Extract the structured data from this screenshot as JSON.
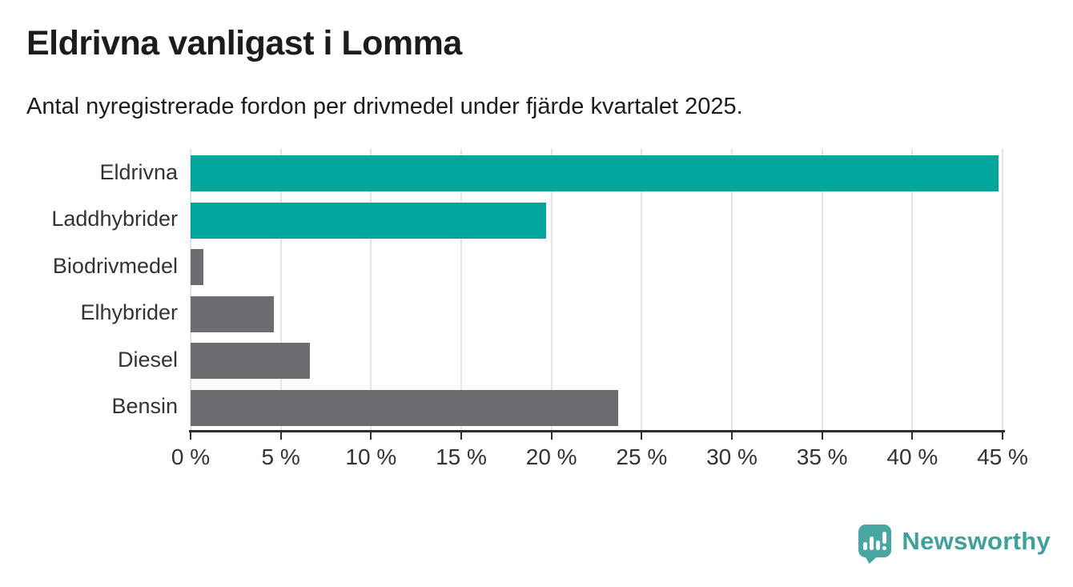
{
  "header": {
    "title": "Eldrivna vanligast i Lomma",
    "subtitle": "Antal nyregistrerade fordon per drivmedel under fjärde kvartalet 2025."
  },
  "chart_data": {
    "type": "bar",
    "orientation": "horizontal",
    "title": "Eldrivna vanligast i Lomma",
    "subtitle": "Antal nyregistrerade fordon per drivmedel under fjärde kvartalet 2025.",
    "categories": [
      "Eldrivna",
      "Laddhybrider",
      "Biodrivmedel",
      "Elhybrider",
      "Diesel",
      "Bensin"
    ],
    "values": [
      44.8,
      19.7,
      0.7,
      4.6,
      6.6,
      23.7
    ],
    "bar_colors": [
      "#00a59b",
      "#00a59b",
      "#6c6c71",
      "#6c6c71",
      "#6c6c71",
      "#6c6c71"
    ],
    "highlight_color": "#00a59b",
    "default_color": "#6c6c71",
    "xlabel": "",
    "ylabel": "",
    "xlim": [
      0,
      45
    ],
    "x_ticks": [
      0,
      5,
      10,
      15,
      20,
      25,
      30,
      35,
      40,
      45
    ],
    "x_tick_suffix": " %",
    "grid": true,
    "legend": false,
    "gridline_color": "#e4e4e4",
    "axis_color": "#2e2e2e"
  },
  "branding": {
    "logo_text": "Newsworthy",
    "logo_color": "#3fa09c",
    "logo_icon": "newsworthy-chart-bubble-icon"
  }
}
